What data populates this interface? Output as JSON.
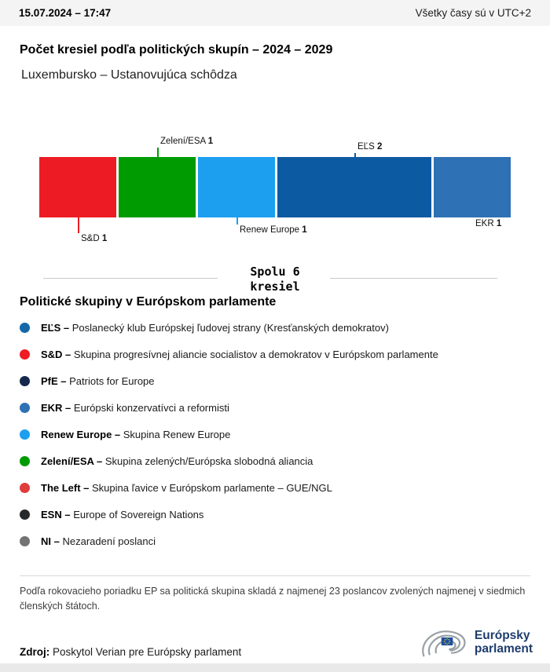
{
  "header": {
    "datetime": "15.07.2024 – 17:47",
    "timezone_note": "Všetky časy sú v UTC+2"
  },
  "title": "Počet kresiel podľa politických skupín – 2024 – 2029",
  "subtitle": "Luxembursko – Ustanovujúca schôdza",
  "chart_data": {
    "type": "bar",
    "variant": "horizontal-stacked-seat-bar",
    "total_seats": 6,
    "total_label_line1": "Spolu 6",
    "total_label_line2": "kresiel",
    "segments": [
      {
        "group": "S&D",
        "seats": 1,
        "color": "#ED1C24",
        "callout": "below-far"
      },
      {
        "group": "Zelení/ESA",
        "seats": 1,
        "color": "#009B00",
        "callout": "above-far"
      },
      {
        "group": "Renew Europe",
        "seats": 1,
        "color": "#1C9FEF",
        "callout": "below-near"
      },
      {
        "group": "EĽS",
        "seats": 2,
        "color": "#0C5AA2",
        "callout": "above-near"
      },
      {
        "group": "EKR",
        "seats": 1,
        "color": "#2E71B4",
        "callout": "below-edge"
      }
    ]
  },
  "legend": {
    "heading": "Politické skupiny v Európskom parlamente",
    "items": [
      {
        "label": "EĽS",
        "description": "Poslanecký klub Európskej ľudovej strany (Kresťanských demokratov)",
        "color": "#1368A9"
      },
      {
        "label": "S&D",
        "description": "Skupina progresívnej aliancie socialistov a demokratov v Európskom parlamente",
        "color": "#ED1C24"
      },
      {
        "label": "PfE",
        "description": "Patriots for Europe",
        "color": "#16294D"
      },
      {
        "label": "EKR",
        "description": "Európski konzervatívci a reformisti",
        "color": "#2E71B4"
      },
      {
        "label": "Renew Europe",
        "description": "Skupina Renew Europe",
        "color": "#1C9FEF"
      },
      {
        "label": "Zelení/ESA",
        "description": "Skupina zelených/Európska slobodná aliancia",
        "color": "#009B00"
      },
      {
        "label": "The Left",
        "description": "Skupina ľavice v Európskom parlamente – GUE/NGL",
        "color": "#E03C3C"
      },
      {
        "label": "ESN",
        "description": "Europe of Sovereign Nations",
        "color": "#26292C"
      },
      {
        "label": "NI",
        "description": "Nezaradení poslanci",
        "color": "#737373"
      }
    ]
  },
  "footnote": "Podľa rokovacieho poriadku EP sa politická skupina skladá z najmenej 23 poslancov zvolených najmenej v siedmich členských štátoch.",
  "source": {
    "label": "Zdroj:",
    "text": "Poskytol Verian pre Európsky parlament"
  },
  "logo": {
    "line1": "Európsky",
    "line2": "parlament"
  }
}
